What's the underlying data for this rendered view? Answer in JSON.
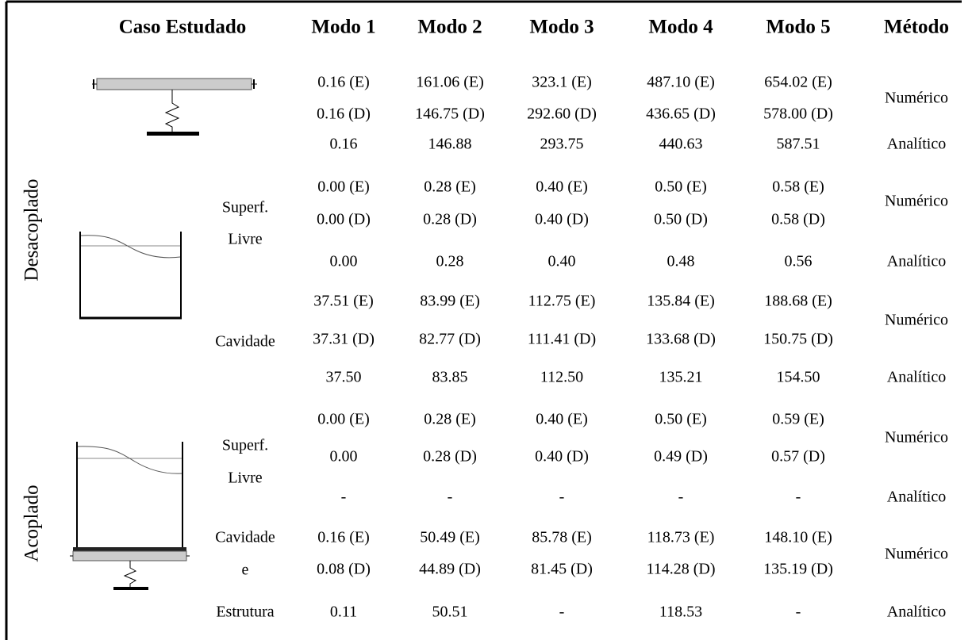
{
  "table": {
    "header": [
      "Caso Estudado",
      "Modo 1",
      "Modo 2",
      "Modo 3",
      "Modo 4",
      "Modo 5",
      "Método"
    ],
    "groups": [
      "Desacoplado",
      "Acoplado"
    ],
    "case_labels": [
      [
        "Superf.",
        "Livre"
      ],
      [
        "Cavidade"
      ],
      [
        "Superf.",
        "Livre"
      ],
      [
        "Cavidade",
        "e",
        "Estrutura"
      ]
    ],
    "rows": [
      [
        "0.16 (E)",
        "161.06 (E)",
        "323.1 (E)",
        "487.10 (E)",
        "654.02 (E)"
      ],
      [
        "0.16 (D)",
        "146.75 (D)",
        "292.60 (D)",
        "436.65 (D)",
        "578.00 (D)"
      ],
      [
        "0.16",
        "146.88",
        "293.75",
        "440.63",
        "587.51"
      ],
      [
        "0.00 (E)",
        "0.28 (E)",
        "0.40 (E)",
        "0.50 (E)",
        "0.58 (E)"
      ],
      [
        "0.00 (D)",
        "0.28 (D)",
        "0.40 (D)",
        "0.50 (D)",
        "0.58 (D)"
      ],
      [
        "0.00",
        "0.28",
        "0.40",
        "0.48",
        "0.56"
      ],
      [
        "37.51 (E)",
        "83.99 (E)",
        "112.75 (E)",
        "135.84 (E)",
        "188.68 (E)"
      ],
      [
        "37.31 (D)",
        "82.77 (D)",
        "111.41 (D)",
        "133.68 (D)",
        "150.75 (D)"
      ],
      [
        "37.50",
        "83.85",
        "112.50",
        "135.21",
        "154.50"
      ],
      [
        "0.00 (E)",
        "0.28 (E)",
        "0.40 (E)",
        "0.50 (E)",
        "0.59 (E)"
      ],
      [
        "0.00",
        "0.28 (D)",
        "0.40 (D)",
        "0.49 (D)",
        "0.57 (D)"
      ],
      [
        "-",
        "-",
        "-",
        "-",
        "-"
      ],
      [
        "0.16 (E)",
        "50.49 (E)",
        "85.78 (E)",
        "118.73 (E)",
        "148.10 (E)"
      ],
      [
        "0.08 (D)",
        "44.89 (D)",
        "81.45 (D)",
        "114.28 (D)",
        "135.19 (D)"
      ],
      [
        "0.11",
        "50.51",
        "-",
        "118.53",
        "-"
      ]
    ],
    "methods": [
      "Numérico",
      "Analítico",
      "Numérico",
      "Analítico",
      "Numérico",
      "Analítico",
      "Numérico",
      "Analítico",
      "Numérico",
      "Analítico"
    ]
  }
}
